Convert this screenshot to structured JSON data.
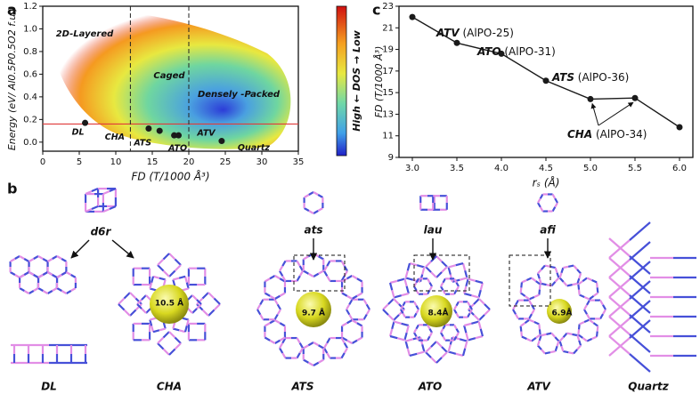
{
  "panel_labels": [
    "a",
    "b",
    "c"
  ],
  "chart_data": [
    {
      "type": "scatter",
      "x_label": "FD (T/1000 Å³)",
      "y_label": "Energy (eV/ Al0.5P0.5O2 f.u.)",
      "colorbar_label": "High ← DOS → Low",
      "point_labels": [
        "DL",
        "CHA",
        "ATS",
        "ATO",
        "ATV",
        "Quartz"
      ],
      "x": [
        5.8,
        14.5,
        16,
        18,
        18.6,
        24.5
      ],
      "values": [
        0.17,
        0.12,
        0.1,
        0.06,
        0.06,
        0.01
      ],
      "color": "#1a1a1a",
      "region_labels": [
        "2D-Layered",
        "Caged",
        "Densely -Packed"
      ],
      "hline": 0.16,
      "hline_color": "#e03a3a",
      "vlines": [
        12,
        20
      ],
      "xlim": [
        0,
        35
      ],
      "xticks": [
        0,
        5,
        10,
        15,
        20,
        25,
        30,
        35
      ],
      "ylim": [
        -0.08,
        1.2
      ],
      "yticks": [
        {
          "value": 0,
          "label": "0.0"
        },
        0.2,
        0.4,
        0.6,
        0.8,
        {
          "value": 1,
          "label": "1.0"
        },
        1.2
      ]
    },
    {
      "type": "line",
      "x_label": "rₛ (Å)",
      "y_label": "FD (T/1000 Å³)",
      "x": [
        3.0,
        3.5,
        4.0,
        4.5,
        5.0,
        5.5,
        6.0
      ],
      "values": [
        22,
        19.6,
        18.6,
        16.1,
        14.4,
        14.5,
        11.8
      ],
      "color": "#1a1a1a",
      "annotations": [
        "ATV (AlPO-25)",
        "ATO (AlPO-31)",
        "ATS (AlPO-36)",
        "CHA (AlPO-34)"
      ],
      "xlim": [
        2.85,
        6.15
      ],
      "xticks": [
        {
          "value": 3,
          "label": "3.0"
        },
        3.5,
        {
          "value": 4,
          "label": "4.0"
        },
        4.5,
        {
          "value": 5,
          "label": "5.0"
        },
        5.5,
        {
          "value": 6,
          "label": "6.0"
        }
      ],
      "ylim": [
        9,
        23
      ],
      "yticks": [
        9,
        11,
        13,
        15,
        17,
        19,
        21,
        23
      ]
    }
  ],
  "structures": {
    "motifs": [
      "d6r",
      "ats",
      "lau",
      "afi"
    ],
    "frameworks": [
      "DL",
      "CHA",
      "ATS",
      "ATO",
      "ATV",
      "Quartz"
    ],
    "pore_sizes": [
      "10.5 Å",
      "9.7 Å",
      "8.4Å",
      "6.9Å"
    ]
  }
}
